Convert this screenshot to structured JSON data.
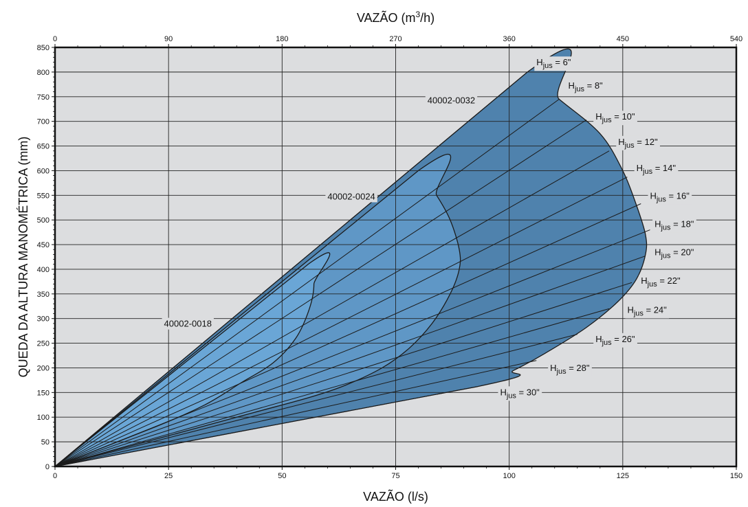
{
  "chart_data": {
    "type": "area",
    "top_axis": {
      "label_prefix": "VAZÃO (m",
      "label_sup": "3",
      "label_suffix": "/h)",
      "ticks": [
        "0",
        "90",
        "180",
        "270",
        "360",
        "450",
        "540"
      ]
    },
    "xlabel": "VAZÃO (l/s)",
    "ylabel": "QUEDA DA ALTURA MANOMÉTRICA (mm)",
    "xlim": [
      0,
      150
    ],
    "ylim": [
      0,
      850
    ],
    "x_ticks": [
      "0",
      "25",
      "50",
      "75",
      "100",
      "125",
      "150"
    ],
    "y_ticks": [
      "0",
      "50",
      "100",
      "150",
      "200",
      "250",
      "300",
      "350",
      "400",
      "450",
      "500",
      "550",
      "600",
      "650",
      "700",
      "750",
      "800",
      "850"
    ],
    "grid": true,
    "colors": {
      "plot_background": "#dcdddf",
      "region_0018": "#6aa6d6",
      "region_0024": "#5f97c6",
      "region_0032": "#4f82ad",
      "lines": "#1b1b1b"
    },
    "regions": [
      {
        "name": "40002-0032",
        "outline": [
          [
            0,
            0
          ],
          [
            104,
            800
          ],
          [
            111,
            745
          ],
          [
            120,
            675
          ],
          [
            125,
            600
          ],
          [
            128,
            530
          ],
          [
            130,
            470
          ],
          [
            130,
            430
          ],
          [
            128,
            380
          ],
          [
            124,
            335
          ],
          [
            117,
            282
          ],
          [
            108,
            230
          ],
          [
            101,
            195
          ],
          [
            93,
            162
          ],
          [
            0,
            0
          ]
        ]
      },
      {
        "name": "40002-0024",
        "outline": [
          [
            0,
            0
          ],
          [
            80,
            600
          ],
          [
            84,
            550
          ],
          [
            87,
            500
          ],
          [
            89,
            440
          ],
          [
            89,
            400
          ],
          [
            87,
            350
          ],
          [
            83,
            290
          ],
          [
            78,
            240
          ],
          [
            72,
            200
          ],
          [
            64,
            165
          ],
          [
            56,
            140
          ],
          [
            44,
            110
          ],
          [
            30,
            75
          ],
          [
            0,
            0
          ]
        ]
      },
      {
        "name": "40002-0018",
        "outline": [
          [
            0,
            0
          ],
          [
            56,
            412
          ],
          [
            57,
            370
          ],
          [
            56,
            320
          ],
          [
            53,
            260
          ],
          [
            48,
            210
          ],
          [
            41,
            170
          ],
          [
            33,
            125
          ],
          [
            22,
            80
          ],
          [
            0,
            0
          ]
        ]
      }
    ],
    "series": [
      {
        "name": "Hjus = 6\"",
        "label_main": "H",
        "label_sub": "jus",
        "label_rest": " = 6\"",
        "end": [
          104,
          800
        ],
        "label_at": [
          106,
          819
        ]
      },
      {
        "name": "Hjus = 8\"",
        "label_main": "H",
        "label_sub": "jus",
        "label_rest": " = 8\"",
        "end": [
          111,
          745
        ],
        "label_at": [
          113,
          772
        ]
      },
      {
        "name": "Hjus = 10\"",
        "label_main": "H",
        "label_sub": "jus",
        "label_rest": " = 10\"",
        "end": [
          117,
          703
        ],
        "label_at": [
          119,
          709
        ]
      },
      {
        "name": "Hjus = 12\"",
        "label_main": "H",
        "label_sub": "jus",
        "label_rest": " = 12\"",
        "end": [
          122,
          640
        ],
        "label_at": [
          124,
          658
        ]
      },
      {
        "name": "Hjus = 14\"",
        "label_main": "H",
        "label_sub": "jus",
        "label_rest": " = 14\"",
        "end": [
          126,
          587
        ],
        "label_at": [
          128,
          605
        ]
      },
      {
        "name": "Hjus = 16\"",
        "label_main": "H",
        "label_sub": "jus",
        "label_rest": " = 16\"",
        "end": [
          129,
          533
        ],
        "label_at": [
          131,
          548
        ]
      },
      {
        "name": "Hjus = 18\"",
        "label_main": "H",
        "label_sub": "jus",
        "label_rest": " = 18\"",
        "end": [
          131,
          480
        ],
        "label_at": [
          132,
          491
        ]
      },
      {
        "name": "Hjus = 20\"",
        "label_main": "H",
        "label_sub": "jus",
        "label_rest": " = 20\"",
        "end": [
          130,
          427
        ],
        "label_at": [
          132,
          434
        ]
      },
      {
        "name": "Hjus = 22\"",
        "label_main": "H",
        "label_sub": "jus",
        "label_rest": " = 22\"",
        "end": [
          127,
          373
        ],
        "label_at": [
          129,
          376
        ]
      },
      {
        "name": "Hjus = 24\"",
        "label_main": "H",
        "label_sub": "jus",
        "label_rest": " = 24\"",
        "end": [
          122,
          320
        ],
        "label_at": [
          126,
          317
        ]
      },
      {
        "name": "Hjus = 26\"",
        "label_main": "H",
        "label_sub": "jus",
        "label_rest": " = 26\"",
        "end": [
          115,
          268
        ],
        "label_at": [
          119,
          258
        ]
      },
      {
        "name": "Hjus = 28\"",
        "label_main": "H",
        "label_sub": "jus",
        "label_rest": " = 28\"",
        "end": [
          106,
          215
        ],
        "label_at": [
          109,
          199
        ]
      },
      {
        "name": "Hjus = 30\"",
        "label_main": "H",
        "label_sub": "jus",
        "label_rest": " = 30\"",
        "end": [
          93,
          162
        ],
        "label_at": [
          98,
          150
        ]
      }
    ],
    "region_labels": [
      {
        "text": "40002-0032",
        "at": [
          82,
          742
        ]
      },
      {
        "text": "40002-0024",
        "at": [
          60,
          547
        ]
      },
      {
        "text": "40002-0018",
        "at": [
          24,
          289
        ]
      }
    ]
  }
}
